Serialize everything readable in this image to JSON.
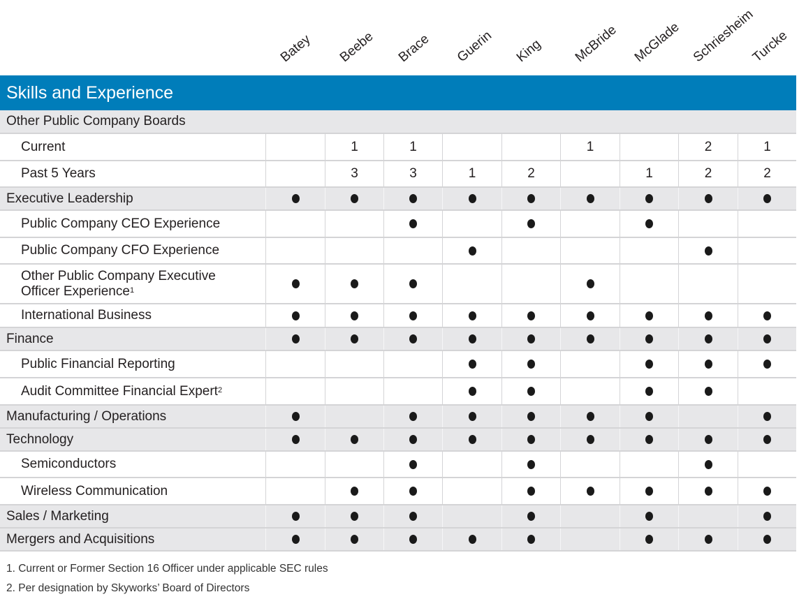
{
  "directors": [
    "Batey",
    "Beebe",
    "Brace",
    "Guerin",
    "King",
    "McBride",
    "McGlade",
    "Schriesheim",
    "Turcke"
  ],
  "banner_title": "Skills and Experience",
  "rows": [
    {
      "label": "Other Public Company Boards",
      "type": "cat",
      "values": [
        "",
        "",
        "",
        "",
        "",
        "",
        "",
        "",
        ""
      ],
      "nocell": true
    },
    {
      "label": "Current",
      "type": "sub",
      "values": [
        "",
        "1",
        "1",
        "",
        "",
        "1",
        "",
        "2",
        "1"
      ]
    },
    {
      "label": "Past 5 Years",
      "type": "sub",
      "values": [
        "",
        "3",
        "3",
        "1",
        "2",
        "",
        "1",
        "2",
        "2"
      ]
    },
    {
      "label": "Executive Leadership",
      "type": "cat",
      "values": [
        "●",
        "●",
        "●",
        "●",
        "●",
        "●",
        "●",
        "●",
        "●"
      ]
    },
    {
      "label": "Public Company CEO Experience",
      "type": "sub",
      "values": [
        "",
        "",
        "●",
        "",
        "●",
        "",
        "●",
        "",
        ""
      ]
    },
    {
      "label": "Public Company CFO Experience",
      "type": "sub",
      "values": [
        "",
        "",
        "",
        "●",
        "",
        "",
        "",
        "●",
        ""
      ]
    },
    {
      "label": "Other Public Company Executive Officer Experience",
      "sup": "1",
      "type": "sub",
      "values": [
        "●",
        "●",
        "●",
        "",
        "",
        "●",
        "",
        "",
        ""
      ]
    },
    {
      "label": "International Business",
      "type": "sub",
      "values": [
        "●",
        "●",
        "●",
        "●",
        "●",
        "●",
        "●",
        "●",
        "●"
      ]
    },
    {
      "label": "Finance",
      "type": "cat",
      "values": [
        "●",
        "●",
        "●",
        "●",
        "●",
        "●",
        "●",
        "●",
        "●"
      ]
    },
    {
      "label": "Public Financial Reporting",
      "type": "sub",
      "values": [
        "",
        "",
        "",
        "●",
        "●",
        "",
        "●",
        "●",
        "●"
      ]
    },
    {
      "label": "Audit Committee Financial Expert",
      "sup": "2",
      "type": "sub",
      "values": [
        "",
        "",
        "",
        "●",
        "●",
        "",
        "●",
        "●",
        ""
      ]
    },
    {
      "label": "Manufacturing / Operations",
      "type": "cat",
      "values": [
        "●",
        "",
        "●",
        "●",
        "●",
        "●",
        "●",
        "",
        "●"
      ]
    },
    {
      "label": "Technology",
      "type": "cat",
      "values": [
        "●",
        "●",
        "●",
        "●",
        "●",
        "●",
        "●",
        "●",
        "●"
      ]
    },
    {
      "label": "Semiconductors",
      "type": "sub",
      "values": [
        "",
        "",
        "●",
        "",
        "●",
        "",
        "",
        "●",
        ""
      ]
    },
    {
      "label": "Wireless Communication",
      "type": "sub",
      "values": [
        "",
        "●",
        "●",
        "",
        "●",
        "●",
        "●",
        "●",
        "●"
      ]
    },
    {
      "label": "Sales / Marketing",
      "type": "cat",
      "values": [
        "●",
        "●",
        "●",
        "",
        "●",
        "",
        "●",
        "",
        "●"
      ]
    },
    {
      "label": "Mergers and Acquisitions",
      "type": "cat",
      "values": [
        "●",
        "●",
        "●",
        "●",
        "●",
        "",
        "●",
        "●",
        "●"
      ]
    }
  ],
  "footnotes": [
    "1. Current or Former Section 16 Officer under applicable SEC rules",
    "2. Per designation by Skyworks’ Board of Directors"
  ],
  "colors": {
    "banner": "#007dba",
    "category_row": "#e7e7e9",
    "grid": "#d4d4d6"
  }
}
